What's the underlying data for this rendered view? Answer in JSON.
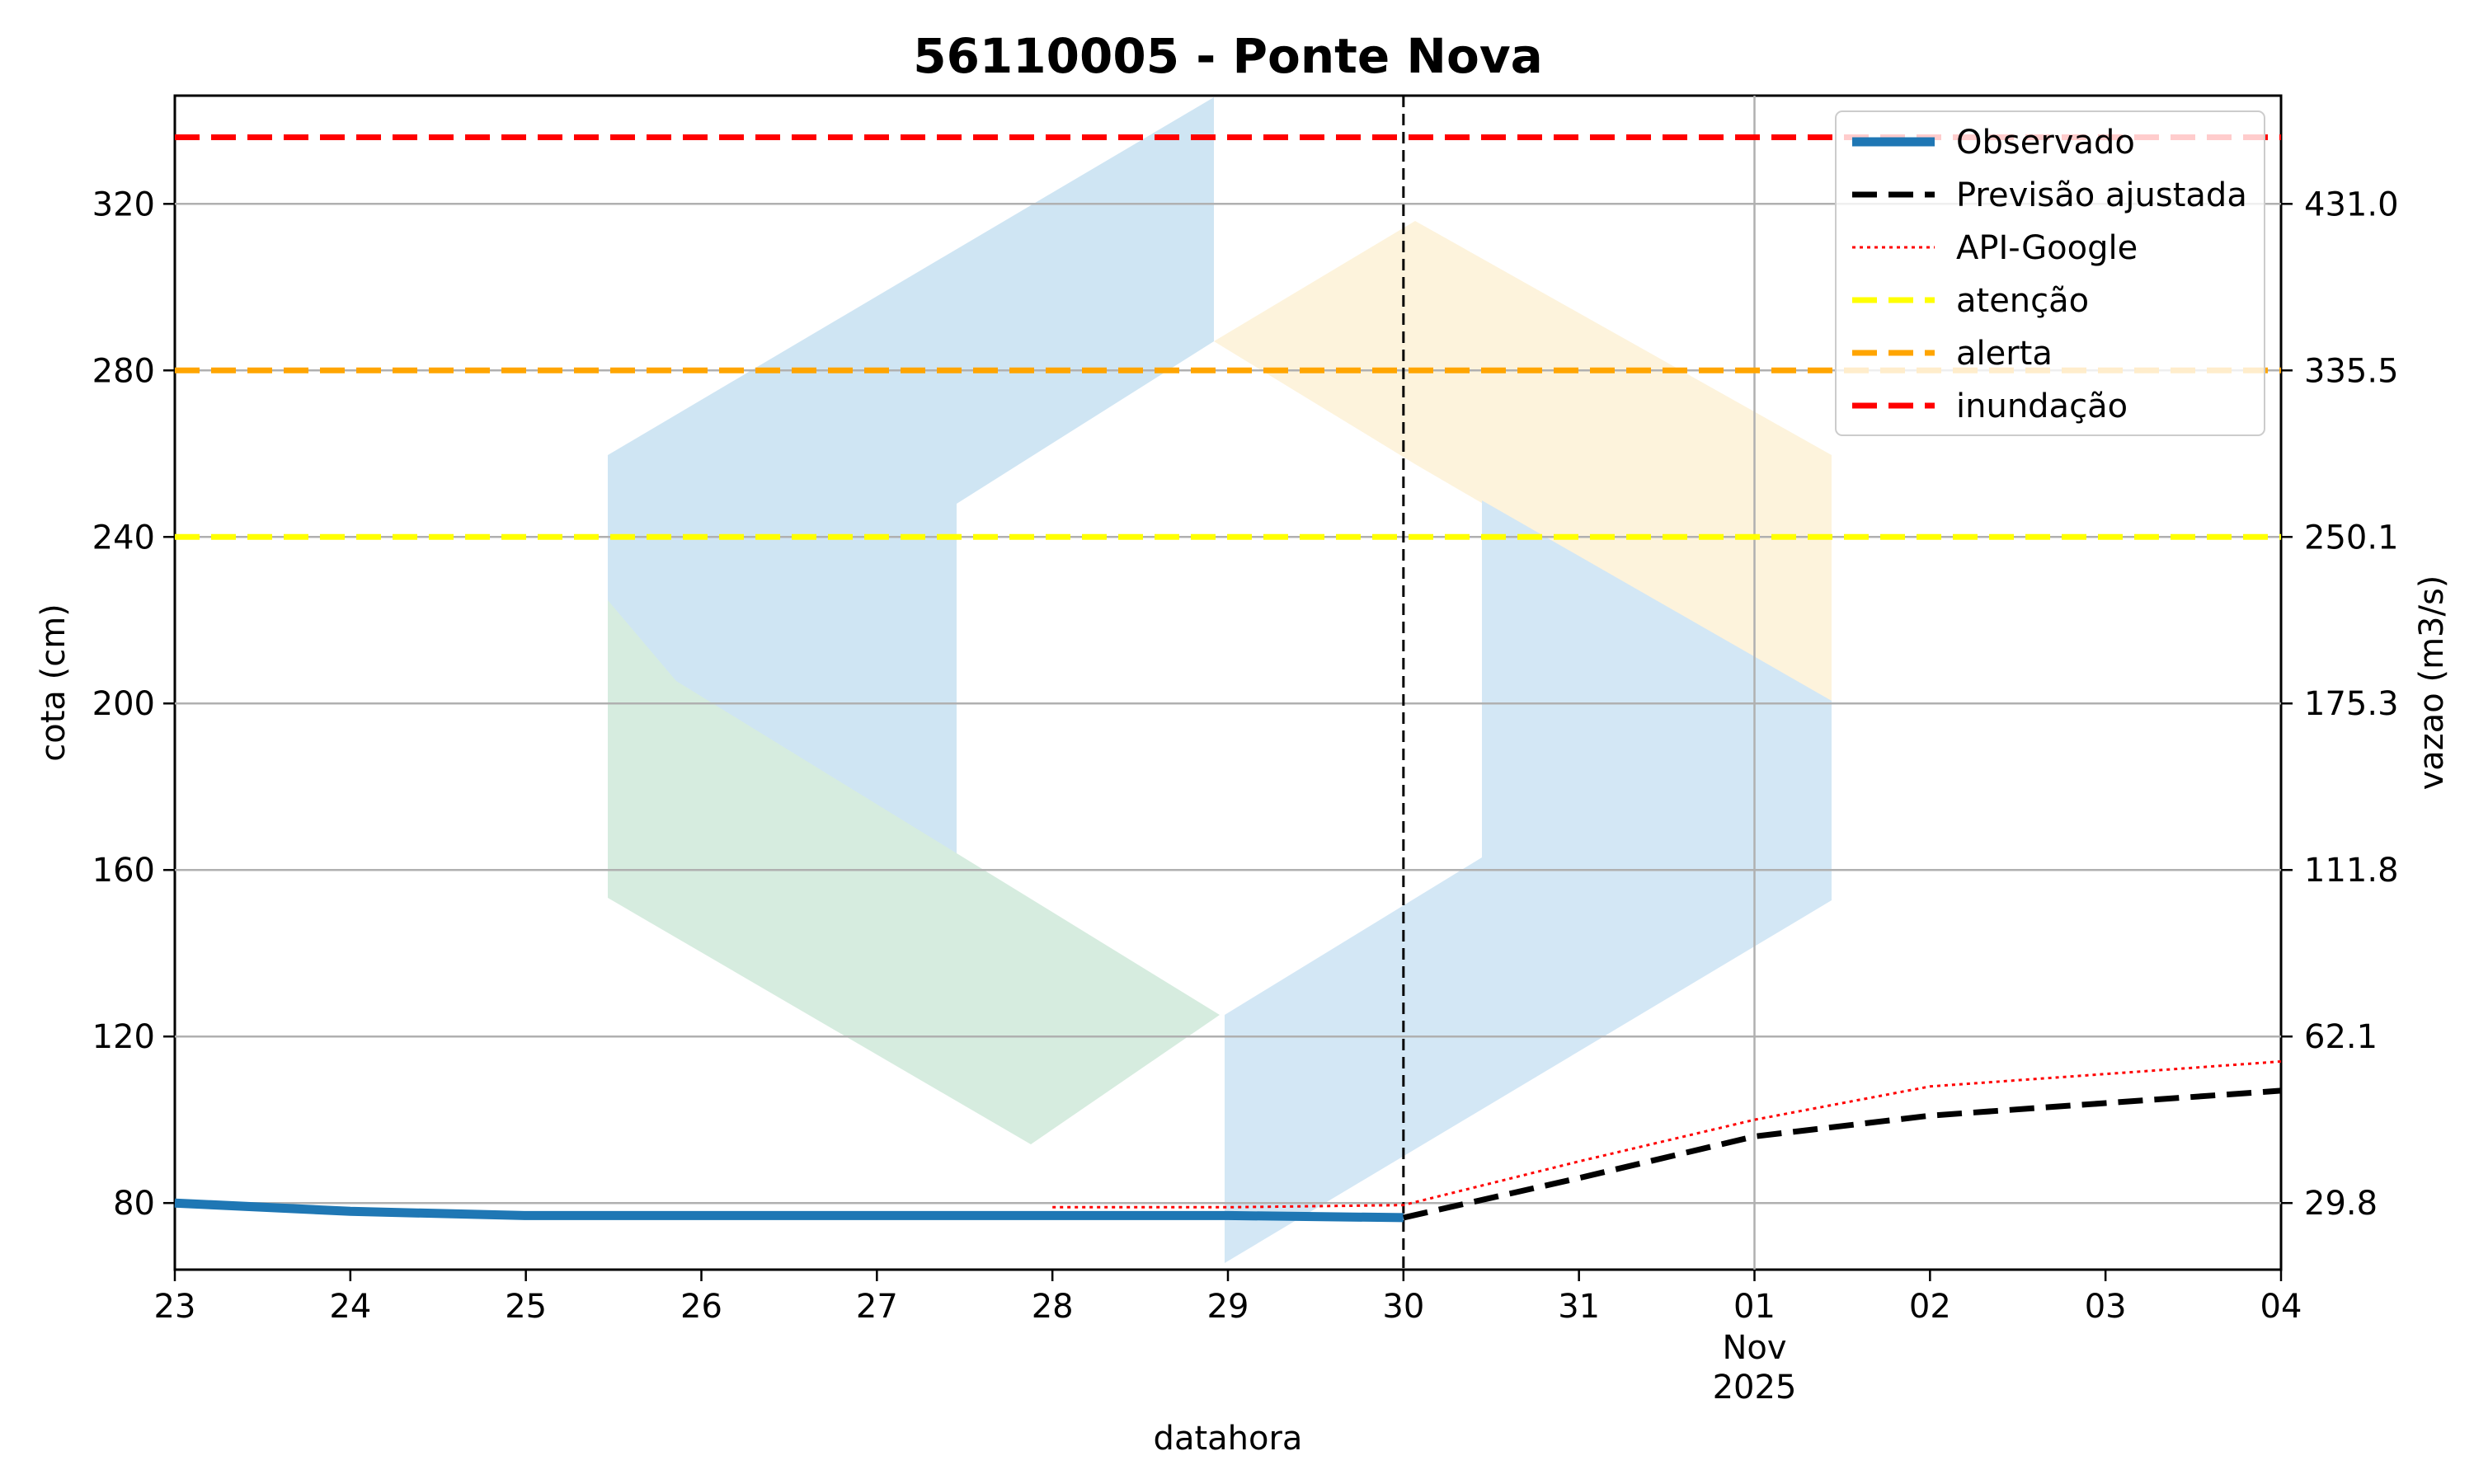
{
  "chart_data": {
    "type": "line",
    "title": "56110005 - Ponte Nova",
    "xlabel": "datahora",
    "ylabel": "cota (cm)",
    "y2label": "vazao (m3/s)",
    "ylim": [
      64,
      346
    ],
    "xlim": [
      "2025-10-23",
      "2025-11-04"
    ],
    "x_ticks": [
      {
        "date": "2025-10-23",
        "label": "23"
      },
      {
        "date": "2025-10-24",
        "label": "24"
      },
      {
        "date": "2025-10-25",
        "label": "25"
      },
      {
        "date": "2025-10-26",
        "label": "26"
      },
      {
        "date": "2025-10-27",
        "label": "27"
      },
      {
        "date": "2025-10-28",
        "label": "28"
      },
      {
        "date": "2025-10-29",
        "label": "29"
      },
      {
        "date": "2025-10-30",
        "label": "30"
      },
      {
        "date": "2025-10-31",
        "label": "31"
      },
      {
        "date": "2025-11-01",
        "label": "01"
      },
      {
        "date": "2025-11-02",
        "label": "02"
      },
      {
        "date": "2025-11-03",
        "label": "03"
      },
      {
        "date": "2025-11-04",
        "label": "04"
      }
    ],
    "x_month_label": "Nov",
    "x_year_label": "2025",
    "y_ticks": [
      80,
      120,
      160,
      200,
      240,
      280,
      320
    ],
    "y2_ticks": [
      {
        "cota": 80,
        "label": "29.8"
      },
      {
        "cota": 120,
        "label": "62.1"
      },
      {
        "cota": 160,
        "label": "111.8"
      },
      {
        "cota": 200,
        "label": "175.3"
      },
      {
        "cota": 240,
        "label": "250.1"
      },
      {
        "cota": 280,
        "label": "335.5"
      },
      {
        "cota": 320,
        "label": "431.0"
      }
    ],
    "grid": true,
    "legend_position": "top-right",
    "forecast_start": "2025-10-30",
    "series": [
      {
        "name": "Observado",
        "style": "solid-thick",
        "color": "#1f77b4",
        "x": [
          "2025-10-23",
          "2025-10-24",
          "2025-10-25",
          "2025-10-26",
          "2025-10-27",
          "2025-10-28",
          "2025-10-29",
          "2025-10-30"
        ],
        "y": [
          80,
          78,
          77,
          77,
          77,
          77,
          77,
          76.5
        ]
      },
      {
        "name": "Previsão ajustada",
        "style": "dashed",
        "color": "#000000",
        "x": [
          "2025-10-30",
          "2025-10-31",
          "2025-11-01",
          "2025-11-02",
          "2025-11-03",
          "2025-11-04"
        ],
        "y": [
          76.5,
          86,
          96,
          101,
          104,
          107
        ]
      },
      {
        "name": "API-Google",
        "style": "dotted",
        "color": "#ff0000",
        "x": [
          "2025-10-28",
          "2025-10-29",
          "2025-10-30",
          "2025-10-31",
          "2025-11-01",
          "2025-11-02",
          "2025-11-03",
          "2025-11-04"
        ],
        "y": [
          79,
          79,
          79.5,
          90,
          100,
          108,
          111,
          114
        ]
      },
      {
        "name": "atenção",
        "style": "threshold",
        "color": "#ffff00",
        "y": 240
      },
      {
        "name": "alerta",
        "style": "threshold",
        "color": "#ffa500",
        "y": 280
      },
      {
        "name": "inundação",
        "style": "threshold",
        "color": "#ff0000",
        "y": 336
      }
    ]
  }
}
